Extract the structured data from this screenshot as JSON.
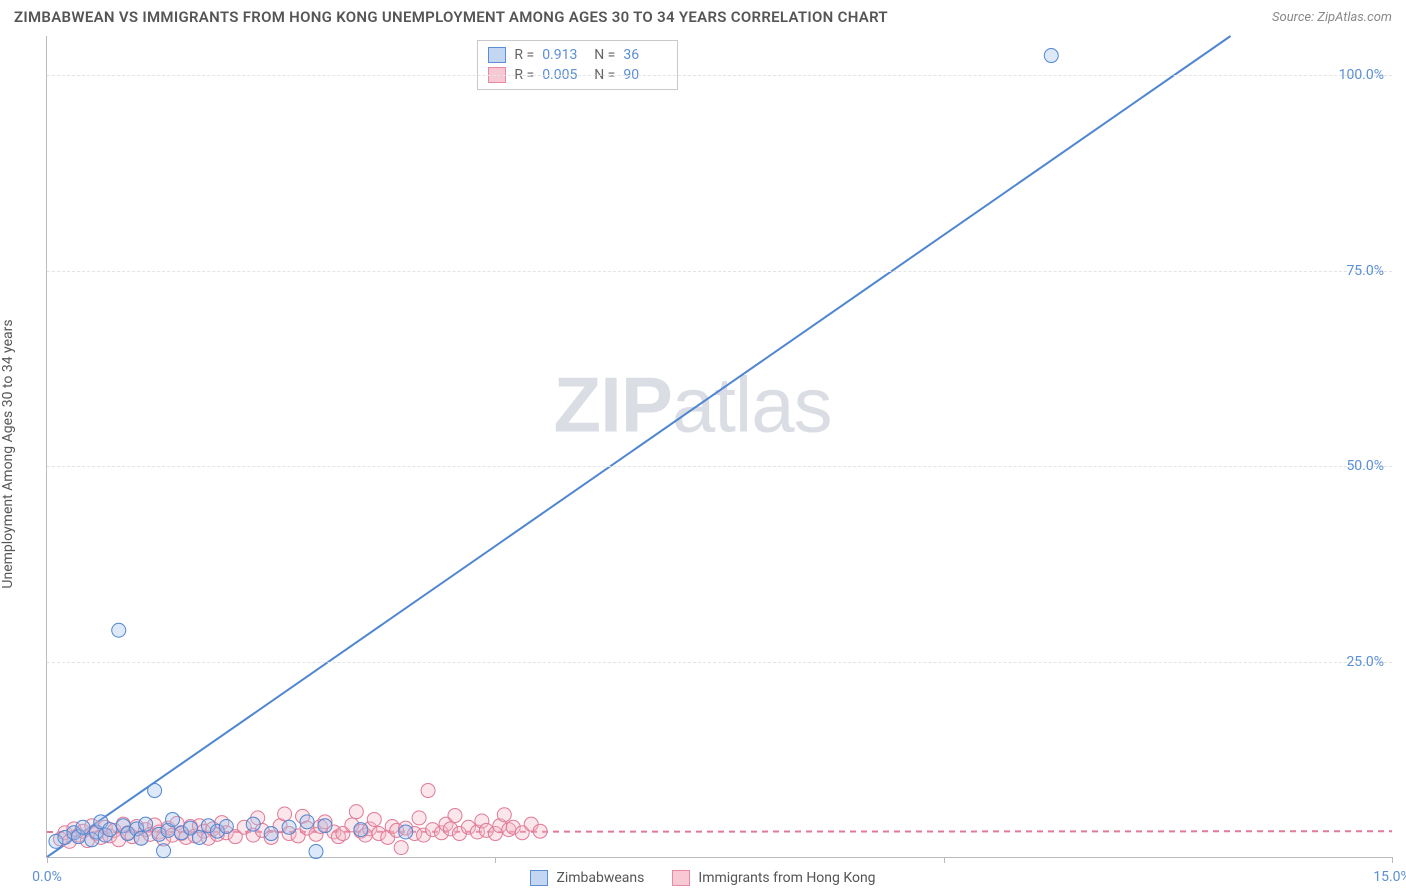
{
  "title": "ZIMBABWEAN VS IMMIGRANTS FROM HONG KONG UNEMPLOYMENT AMONG AGES 30 TO 34 YEARS CORRELATION CHART",
  "source_label": "Source: ZipAtlas.com",
  "y_axis_label": "Unemployment Among Ages 30 to 34 years",
  "watermark": {
    "bold": "ZIP",
    "rest": "atlas"
  },
  "chart": {
    "type": "scatter-with-regression",
    "background_color": "#ffffff",
    "grid_color": "#e4e4e4",
    "axis_color": "#bbbbbb",
    "tick_label_color": "#5b8fd6",
    "xlim": [
      0,
      15
    ],
    "ylim": [
      0,
      105
    ],
    "x_ticks": [
      0.0,
      5.0,
      10.0,
      15.0
    ],
    "x_tick_labels": [
      "0.0%",
      "",
      "",
      "15.0%"
    ],
    "y_ticks": [
      25.0,
      50.0,
      75.0,
      100.0
    ],
    "y_tick_labels": [
      "25.0%",
      "50.0%",
      "75.0%",
      "100.0%"
    ],
    "marker_radius": 7,
    "marker_fill_opacity": 0.35,
    "line_width": 2,
    "series": [
      {
        "name": "Zimbabweans",
        "color_fill": "#9fc1ec",
        "color_stroke": "#4f86d1",
        "R": "0.913",
        "N": "36",
        "regression": {
          "x1": 0,
          "y1": 0,
          "x2": 13.2,
          "y2": 105,
          "dash": null
        },
        "points": [
          [
            0.1,
            2.0
          ],
          [
            0.2,
            2.5
          ],
          [
            0.3,
            3.1
          ],
          [
            0.35,
            2.6
          ],
          [
            0.4,
            3.8
          ],
          [
            0.5,
            2.2
          ],
          [
            0.55,
            3.2
          ],
          [
            0.6,
            4.5
          ],
          [
            0.65,
            2.8
          ],
          [
            0.7,
            3.5
          ],
          [
            0.8,
            29.0
          ],
          [
            0.85,
            4.0
          ],
          [
            0.9,
            3.0
          ],
          [
            1.0,
            3.6
          ],
          [
            1.05,
            2.4
          ],
          [
            1.1,
            4.2
          ],
          [
            1.2,
            8.5
          ],
          [
            1.25,
            2.9
          ],
          [
            1.3,
            0.8
          ],
          [
            1.35,
            3.4
          ],
          [
            1.4,
            4.8
          ],
          [
            1.5,
            3.1
          ],
          [
            1.6,
            3.7
          ],
          [
            1.7,
            2.5
          ],
          [
            1.8,
            4.0
          ],
          [
            1.9,
            3.3
          ],
          [
            2.0,
            3.9
          ],
          [
            2.3,
            4.2
          ],
          [
            2.5,
            3.0
          ],
          [
            2.7,
            3.8
          ],
          [
            2.9,
            4.5
          ],
          [
            3.0,
            0.7
          ],
          [
            3.1,
            4.0
          ],
          [
            3.5,
            3.5
          ],
          [
            4.0,
            3.2
          ],
          [
            11.2,
            102.5
          ]
        ]
      },
      {
        "name": "Immigrants from Hong Kong",
        "color_fill": "#f3b7c7",
        "color_stroke": "#e07a97",
        "R": "0.005",
        "N": "90",
        "regression": {
          "x1": 0,
          "y1": 3.2,
          "x2": 15,
          "y2": 3.3,
          "dash": "6,5"
        },
        "points": [
          [
            0.15,
            2.3
          ],
          [
            0.2,
            3.1
          ],
          [
            0.25,
            2.0
          ],
          [
            0.3,
            3.6
          ],
          [
            0.35,
            2.8
          ],
          [
            0.4,
            3.3
          ],
          [
            0.45,
            2.1
          ],
          [
            0.5,
            4.0
          ],
          [
            0.55,
            3.0
          ],
          [
            0.6,
            2.5
          ],
          [
            0.65,
            3.8
          ],
          [
            0.7,
            2.7
          ],
          [
            0.75,
            3.4
          ],
          [
            0.8,
            2.2
          ],
          [
            0.85,
            4.2
          ],
          [
            0.9,
            3.1
          ],
          [
            0.95,
            2.6
          ],
          [
            1.0,
            3.9
          ],
          [
            1.05,
            2.4
          ],
          [
            1.1,
            3.5
          ],
          [
            1.15,
            2.9
          ],
          [
            1.2,
            4.1
          ],
          [
            1.25,
            3.2
          ],
          [
            1.3,
            2.3
          ],
          [
            1.35,
            3.7
          ],
          [
            1.4,
            2.8
          ],
          [
            1.45,
            4.3
          ],
          [
            1.5,
            3.0
          ],
          [
            1.55,
            2.5
          ],
          [
            1.6,
            3.9
          ],
          [
            1.65,
            2.7
          ],
          [
            1.7,
            4.0
          ],
          [
            1.75,
            3.3
          ],
          [
            1.8,
            2.4
          ],
          [
            1.85,
            3.6
          ],
          [
            1.9,
            2.9
          ],
          [
            1.95,
            4.4
          ],
          [
            2.0,
            3.1
          ],
          [
            2.1,
            2.6
          ],
          [
            2.2,
            3.8
          ],
          [
            2.3,
            2.8
          ],
          [
            2.35,
            5.0
          ],
          [
            2.4,
            3.4
          ],
          [
            2.5,
            2.5
          ],
          [
            2.6,
            4.0
          ],
          [
            2.65,
            5.5
          ],
          [
            2.7,
            3.0
          ],
          [
            2.8,
            2.7
          ],
          [
            2.85,
            5.2
          ],
          [
            2.9,
            3.7
          ],
          [
            3.0,
            2.9
          ],
          [
            3.05,
            3.9
          ],
          [
            3.1,
            4.5
          ],
          [
            3.2,
            3.2
          ],
          [
            3.25,
            2.6
          ],
          [
            3.3,
            3.0
          ],
          [
            3.4,
            4.1
          ],
          [
            3.45,
            5.8
          ],
          [
            3.5,
            3.3
          ],
          [
            3.55,
            2.8
          ],
          [
            3.6,
            3.6
          ],
          [
            3.65,
            4.8
          ],
          [
            3.7,
            3.0
          ],
          [
            3.8,
            2.5
          ],
          [
            3.85,
            3.9
          ],
          [
            3.9,
            3.4
          ],
          [
            3.95,
            1.2
          ],
          [
            4.0,
            3.7
          ],
          [
            4.1,
            3.0
          ],
          [
            4.15,
            5.0
          ],
          [
            4.2,
            2.8
          ],
          [
            4.25,
            8.5
          ],
          [
            4.3,
            3.5
          ],
          [
            4.4,
            3.1
          ],
          [
            4.45,
            4.2
          ],
          [
            4.5,
            3.6
          ],
          [
            4.55,
            5.3
          ],
          [
            4.6,
            3.0
          ],
          [
            4.7,
            3.8
          ],
          [
            4.8,
            3.2
          ],
          [
            4.85,
            4.6
          ],
          [
            4.9,
            3.4
          ],
          [
            5.0,
            3.0
          ],
          [
            5.05,
            4.0
          ],
          [
            5.1,
            5.4
          ],
          [
            5.15,
            3.5
          ],
          [
            5.2,
            3.8
          ],
          [
            5.3,
            3.1
          ],
          [
            5.4,
            4.2
          ],
          [
            5.5,
            3.3
          ]
        ]
      }
    ]
  },
  "legend": {
    "items": [
      {
        "label": "Zimbabweans",
        "swatch_class": "blue"
      },
      {
        "label": "Immigrants from Hong Kong",
        "swatch_class": "pink"
      }
    ]
  }
}
